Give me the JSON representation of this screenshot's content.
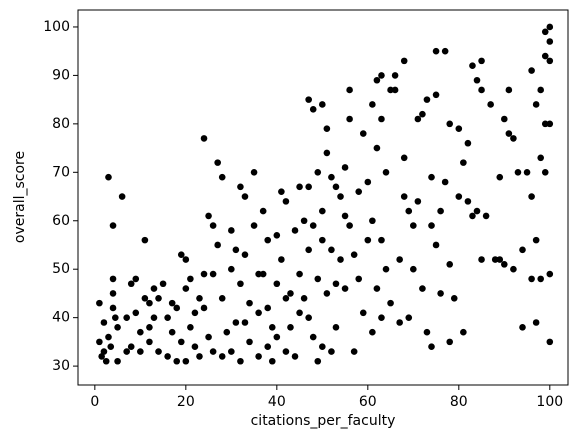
{
  "chart_data": {
    "type": "scatter",
    "color": "#000000",
    "x_label": "citations_per_faculty",
    "y_label": "overall_score",
    "xlim": [
      -3.7,
      104
    ],
    "ylim": [
      26.1,
      103.5
    ],
    "xticks": [
      0,
      20,
      40,
      60,
      80,
      100
    ],
    "yticks": [
      30,
      40,
      50,
      60,
      70,
      80,
      90,
      100
    ],
    "x": [
      1,
      1,
      1.5,
      2,
      2,
      2.5,
      3,
      3,
      3.5,
      4,
      4,
      4,
      4,
      4.5,
      5,
      5,
      6,
      7,
      7,
      8,
      8,
      9,
      9,
      10,
      10,
      11,
      11,
      12,
      12,
      12,
      13,
      13,
      14,
      14,
      15,
      16,
      16,
      17,
      17,
      18,
      18,
      19,
      19,
      20,
      20,
      20,
      21,
      21,
      22,
      22,
      23,
      23,
      24,
      24,
      24,
      25,
      25,
      26,
      26,
      26,
      27,
      27,
      28,
      28,
      28,
      29,
      30,
      30,
      30,
      31,
      31,
      32,
      32,
      32,
      33,
      33,
      33,
      34,
      34,
      35,
      35,
      36,
      36,
      36,
      37,
      37,
      38,
      38,
      38,
      39,
      39,
      40,
      40,
      40,
      41,
      41,
      42,
      42,
      42,
      43,
      43,
      44,
      44,
      45,
      45,
      45,
      46,
      46,
      47,
      47,
      47,
      47,
      48,
      48,
      48,
      49,
      49,
      49,
      50,
      50,
      50,
      50,
      51,
      51,
      51,
      52,
      52,
      52,
      53,
      53,
      53,
      54,
      54,
      55,
      55,
      55,
      56,
      56,
      56,
      57,
      57,
      58,
      58,
      59,
      59,
      60,
      60,
      61,
      61,
      61,
      62,
      62,
      62,
      63,
      63,
      63,
      63,
      64,
      64,
      65,
      65,
      66,
      66,
      67,
      67,
      68,
      68,
      68,
      69,
      69,
      70,
      70,
      71,
      71,
      72,
      72,
      73,
      73,
      74,
      74,
      74,
      75,
      75,
      75,
      76,
      76,
      77,
      77,
      78,
      78,
      78,
      79,
      80,
      80,
      81,
      81,
      82,
      82,
      83,
      83,
      84,
      84,
      85,
      85,
      85,
      86,
      87,
      88,
      89,
      89,
      90,
      90,
      91,
      91,
      92,
      92,
      93,
      94,
      94,
      95,
      96,
      96,
      96,
      97,
      97,
      97,
      98,
      98,
      98,
      99,
      99,
      99,
      99,
      100,
      100,
      100,
      100,
      100,
      100
    ],
    "values": [
      43,
      35,
      32,
      39,
      33,
      31,
      69,
      36,
      34,
      59,
      48,
      45,
      42,
      40,
      38,
      31,
      65,
      40,
      33,
      47,
      34,
      48,
      41,
      37,
      33,
      56,
      44,
      43,
      38,
      35,
      46,
      40,
      44,
      33,
      47,
      40,
      32,
      43,
      37,
      42,
      31,
      53,
      35,
      52,
      46,
      31,
      48,
      38,
      41,
      34,
      44,
      32,
      77,
      49,
      42,
      61,
      36,
      59,
      49,
      33,
      72,
      55,
      69,
      44,
      32,
      37,
      58,
      50,
      33,
      54,
      39,
      67,
      47,
      31,
      65,
      53,
      39,
      43,
      35,
      70,
      59,
      49,
      41,
      32,
      62,
      49,
      56,
      42,
      34,
      38,
      31,
      57,
      47,
      36,
      66,
      52,
      64,
      44,
      33,
      45,
      38,
      58,
      32,
      67,
      49,
      41,
      60,
      44,
      85,
      67,
      54,
      40,
      83,
      59,
      36,
      70,
      48,
      31,
      84,
      62,
      56,
      34,
      79,
      74,
      45,
      69,
      54,
      33,
      67,
      47,
      38,
      65,
      52,
      71,
      61,
      46,
      87,
      81,
      59,
      53,
      33,
      66,
      48,
      78,
      41,
      68,
      56,
      84,
      60,
      37,
      89,
      75,
      46,
      90,
      81,
      56,
      40,
      70,
      50,
      87,
      43,
      90,
      87,
      52,
      39,
      93,
      73,
      65,
      62,
      40,
      59,
      50,
      81,
      64,
      82,
      46,
      85,
      37,
      69,
      59,
      34,
      95,
      86,
      55,
      62,
      45,
      95,
      68,
      80,
      51,
      35,
      44,
      79,
      65,
      72,
      37,
      76,
      64,
      92,
      61,
      89,
      62,
      93,
      87,
      52,
      61,
      84,
      52,
      69,
      52,
      81,
      51,
      87,
      78,
      77,
      50,
      70,
      38,
      54,
      70,
      91,
      65,
      48,
      84,
      56,
      39,
      87,
      73,
      48,
      99,
      94,
      80,
      70,
      100,
      97,
      93,
      80,
      49,
      35
    ]
  }
}
